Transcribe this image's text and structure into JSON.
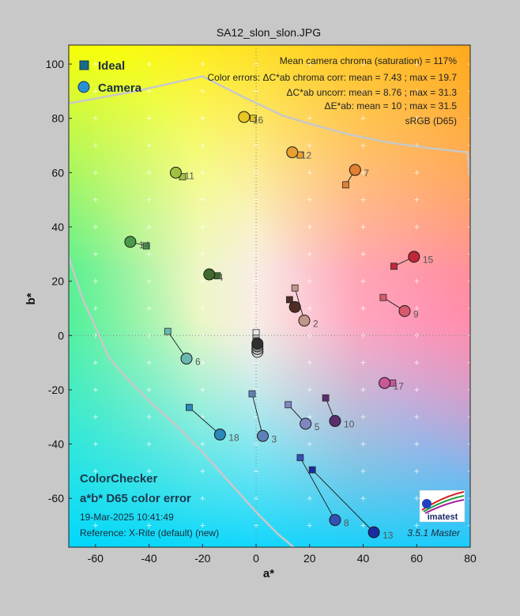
{
  "chart_data": {
    "type": "scatter",
    "title": "SA12_slon_slon.JPG",
    "xlabel": "a*",
    "ylabel": "b*",
    "xlim": [
      -70,
      80
    ],
    "ylim": [
      -78,
      107
    ],
    "xticks": [
      -60,
      -40,
      -20,
      0,
      20,
      40,
      60,
      80
    ],
    "yticks": [
      -60,
      -40,
      -20,
      0,
      20,
      40,
      60,
      80,
      100
    ],
    "grid": "cross-markers",
    "legend_position": "top-left",
    "legend": [
      {
        "name": "Ideal",
        "marker": "square",
        "color": "#1a6a8a"
      },
      {
        "name": "Camera",
        "marker": "circle",
        "color": "#2a8fd0"
      }
    ],
    "stats": [
      "Mean camera chroma (saturation) = 117%",
      "Color errors: ΔC*ab chroma corr:  mean = 7.43 ;  max = 19.7",
      "ΔC*ab uncorr:  mean = 8.76 ;  max = 31.3",
      "ΔE*ab:  mean = 10 ;  max = 31.5",
      "sRGB (D65)"
    ],
    "patches": [
      {
        "id": "2",
        "ideal": [
          14.5,
          17.5
        ],
        "camera": [
          18.0,
          5.5
        ],
        "color": "#c2958a"
      },
      {
        "id": "2",
        "ideal": [
          12.5,
          13.2
        ],
        "camera": [
          14.5,
          10.5
        ],
        "color": "#4e2e26",
        "label": false
      },
      {
        "id": "3",
        "ideal": [
          -1.5,
          -21.5
        ],
        "camera": [
          2.5,
          -37.0
        ],
        "color": "#5e80b8"
      },
      {
        "id": "4",
        "ideal": [
          -14.5,
          22.0
        ],
        "camera": [
          -17.5,
          22.5
        ],
        "color": "#416a2e"
      },
      {
        "id": "5",
        "ideal": [
          12.0,
          -25.5
        ],
        "camera": [
          18.5,
          -32.5
        ],
        "color": "#8286c0"
      },
      {
        "id": "6",
        "ideal": [
          -33.0,
          1.5
        ],
        "camera": [
          -26.0,
          -8.5
        ],
        "color": "#68b8b0"
      },
      {
        "id": "7",
        "ideal": [
          33.5,
          55.5
        ],
        "camera": [
          37.0,
          61.0
        ],
        "color": "#e08030"
      },
      {
        "id": "8",
        "ideal": [
          16.5,
          -45.0
        ],
        "camera": [
          29.5,
          -68.0
        ],
        "color": "#3450b8"
      },
      {
        "id": "9",
        "ideal": [
          47.5,
          14.0
        ],
        "camera": [
          55.5,
          9.0
        ],
        "color": "#d65a6a"
      },
      {
        "id": "10",
        "ideal": [
          26.0,
          -23.0
        ],
        "camera": [
          29.5,
          -31.5
        ],
        "color": "#5a2e6c"
      },
      {
        "id": "11",
        "ideal": [
          -27.5,
          58.5
        ],
        "camera": [
          -30.0,
          60.0
        ],
        "color": "#a0c040"
      },
      {
        "id": "12",
        "ideal": [
          16.5,
          66.5
        ],
        "camera": [
          13.5,
          67.5
        ],
        "color": "#e8a030"
      },
      {
        "id": "13",
        "ideal": [
          21.0,
          -49.5
        ],
        "camera": [
          44.0,
          -72.5
        ],
        "color": "#1a2ca0"
      },
      {
        "id": "14",
        "ideal": [
          -41.0,
          33.0
        ],
        "camera": [
          -47.0,
          34.5
        ],
        "color": "#4a9a4a"
      },
      {
        "id": "15",
        "ideal": [
          51.5,
          25.5
        ],
        "camera": [
          59.0,
          29.0
        ],
        "color": "#c02838"
      },
      {
        "id": "16",
        "ideal": [
          -1.0,
          80.0
        ],
        "camera": [
          -4.5,
          80.5
        ],
        "color": "#e8c820"
      },
      {
        "id": "17",
        "ideal": [
          51.0,
          -17.5
        ],
        "camera": [
          48.0,
          -17.5
        ],
        "color": "#c85898"
      },
      {
        "id": "18",
        "ideal": [
          -25.0,
          -26.5
        ],
        "camera": [
          -13.5,
          -36.5
        ],
        "color": "#2a88b8"
      },
      {
        "id": "",
        "ideal": [
          0.0,
          1.0
        ],
        "camera": [
          0.5,
          -6.0
        ],
        "color": "#e8e8e8",
        "label": false
      },
      {
        "id": "",
        "ideal": [
          0.0,
          -1.0
        ],
        "camera": [
          0.5,
          -5.0
        ],
        "color": "#c0c0c0",
        "label": false
      },
      {
        "id": "",
        "ideal": [
          0.0,
          -2.0
        ],
        "camera": [
          0.5,
          -4.0
        ],
        "color": "#8a8a8a",
        "label": false
      },
      {
        "id": "",
        "ideal": [
          0.0,
          -3.0
        ],
        "camera": [
          0.5,
          -3.0
        ],
        "color": "#303030",
        "label": false
      }
    ],
    "gamut_top": [
      [
        -70,
        85.5
      ],
      [
        -45,
        90
      ],
      [
        -20,
        95.5
      ],
      [
        -5,
        88
      ],
      [
        10,
        81
      ],
      [
        20,
        78
      ],
      [
        35,
        74
      ],
      [
        50,
        71
      ],
      [
        65,
        69
      ],
      [
        79,
        67.5
      ],
      [
        80,
        58
      ]
    ],
    "gamut_left": [
      [
        -70,
        29
      ],
      [
        -65,
        14
      ],
      [
        -55,
        -8
      ],
      [
        -49,
        -15
      ],
      [
        -40,
        -24
      ],
      [
        -30,
        -33
      ],
      [
        -20,
        -43
      ],
      [
        -10,
        -54
      ],
      [
        0,
        -65
      ],
      [
        8,
        -73
      ],
      [
        14,
        -78
      ]
    ]
  },
  "info": {
    "heading1": "ColorChecker",
    "heading2": "a*b* D65 color error",
    "timestamp": "19-Mar-2025 10:41:49",
    "reference": "Reference: X-Rite (default) (new)",
    "version": "3.5.1  Master",
    "logo_text": "imatest"
  }
}
